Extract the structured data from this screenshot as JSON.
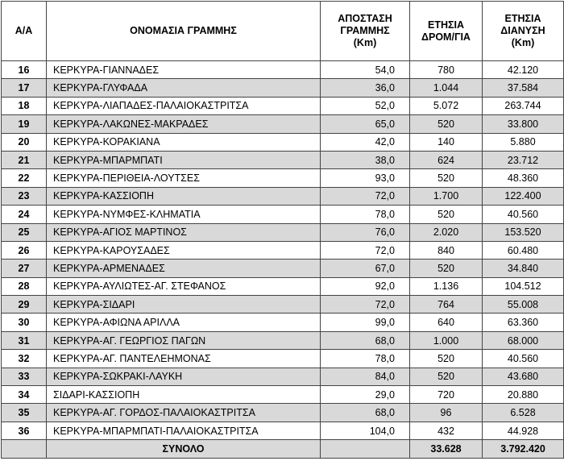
{
  "table": {
    "header": [
      [
        "Α/Α"
      ],
      [
        "ΟΝΟΜΑΣΙΑ ΓΡΑΜΜΗΣ"
      ],
      [
        "ΑΠΟΣΤΑΣΗ",
        "ΓΡΑΜΜΗΣ",
        "(Km)"
      ],
      [
        "ΕΤΗΣΙΑ",
        "ΔΡΟΜ/ΓΙΑ"
      ],
      [
        "ΕΤΗΣΙΑ",
        "ΔΙΑΝΥΣΗ",
        "(Km)"
      ]
    ],
    "rows": [
      [
        "16",
        "ΚΕΡΚΥΡΑ-ΓΙΑΝΝΑΔΕΣ",
        "54,0",
        "780",
        "42.120"
      ],
      [
        "17",
        "ΚΕΡΚΥΡΑ-ΓΛΥΦΑΔΑ",
        "36,0",
        "1.044",
        "37.584"
      ],
      [
        "18",
        "ΚΕΡΚΥΡΑ-ΛΙΑΠΑΔΕΣ-ΠΑΛΑΙΟΚΑΣΤΡΙΤΣΑ",
        "52,0",
        "5.072",
        "263.744"
      ],
      [
        "19",
        "ΚΕΡΚΥΡΑ-ΛΑΚΩΝΕΣ-ΜΑΚΡΑΔΕΣ",
        "65,0",
        "520",
        "33.800"
      ],
      [
        "20",
        "ΚΕΡΚΥΡΑ-ΚΟΡΑΚΙΑΝΑ",
        "42,0",
        "140",
        "5.880"
      ],
      [
        "21",
        "ΚΕΡΚΥΡΑ-ΜΠΑΡΜΠΑΤΙ",
        "38,0",
        "624",
        "23.712"
      ],
      [
        "22",
        "ΚΕΡΚΥΡΑ-ΠΕΡΙΘΕΙΑ-ΛΟΥΤΣΕΣ",
        "93,0",
        "520",
        "48.360"
      ],
      [
        "23",
        "ΚΕΡΚΥΡΑ-ΚΑΣΣΙΟΠΗ",
        "72,0",
        "1.700",
        "122.400"
      ],
      [
        "24",
        "ΚΕΡΚΥΡΑ-ΝΥΜΦΕΣ-ΚΛΗΜΑΤΙΑ",
        "78,0",
        "520",
        "40.560"
      ],
      [
        "25",
        "ΚΕΡΚΥΡΑ-ΑΓΙΟΣ ΜΑΡΤΙΝΟΣ",
        "76,0",
        "2.020",
        "153.520"
      ],
      [
        "26",
        "ΚΕΡΚΥΡΑ-ΚΑΡΟΥΣΑΔΕΣ",
        "72,0",
        "840",
        "60.480"
      ],
      [
        "27",
        "ΚΕΡΚΥΡΑ-ΑΡΜΕΝΑΔΕΣ",
        "67,0",
        "520",
        "34.840"
      ],
      [
        "28",
        "ΚΕΡΚΥΡΑ-ΑΥΛΙΩΤΕΣ-ΑΓ. ΣΤΕΦΑΝΟΣ",
        "92,0",
        "1.136",
        "104.512"
      ],
      [
        "29",
        "ΚΕΡΚΥΡΑ-ΣΙΔΑΡΙ",
        "72,0",
        "764",
        "55.008"
      ],
      [
        "30",
        "ΚΕΡΚΥΡΑ-ΑΦΙΩΝΑ ΑΡΙΛΛΑ",
        "99,0",
        "640",
        "63.360"
      ],
      [
        "31",
        "ΚΕΡΚΥΡΑ-ΑΓ. ΓΕΩΡΓΙΟΣ ΠΑΓΩΝ",
        "68,0",
        "1.000",
        "68.000"
      ],
      [
        "32",
        "ΚΕΡΚΥΡΑ-ΑΓ. ΠΑΝΤΕΛΕΗΜΟΝΑΣ",
        "78,0",
        "520",
        "40.560"
      ],
      [
        "33",
        "ΚΕΡΚΥΡΑ-ΣΩΚΡΑΚΙ-ΛΑΥΚΗ",
        "84,0",
        "520",
        "43.680"
      ],
      [
        "34",
        "ΣΙΔΑΡΙ-ΚΑΣΣΙΟΠΗ",
        "29,0",
        "720",
        "20.880"
      ],
      [
        "35",
        "ΚΕΡΚΥΡΑ-ΑΓ. ΓΟΡΔΟΣ-ΠΑΛΑΙΟΚΑΣΤΡΙΤΣΑ",
        "68,0",
        "96",
        "6.528"
      ],
      [
        "36",
        "ΚΕΡΚΥΡΑ-ΜΠΑΡΜΠΑΤΙ-ΠΑΛΑΙΟΚΑΣΤΡΙΤΣΑ",
        "104,0",
        "432",
        "44.928"
      ]
    ],
    "total": {
      "label": "ΣΥΝΟΛΟ",
      "trips": "33.628",
      "distance": "3.792.420"
    }
  }
}
